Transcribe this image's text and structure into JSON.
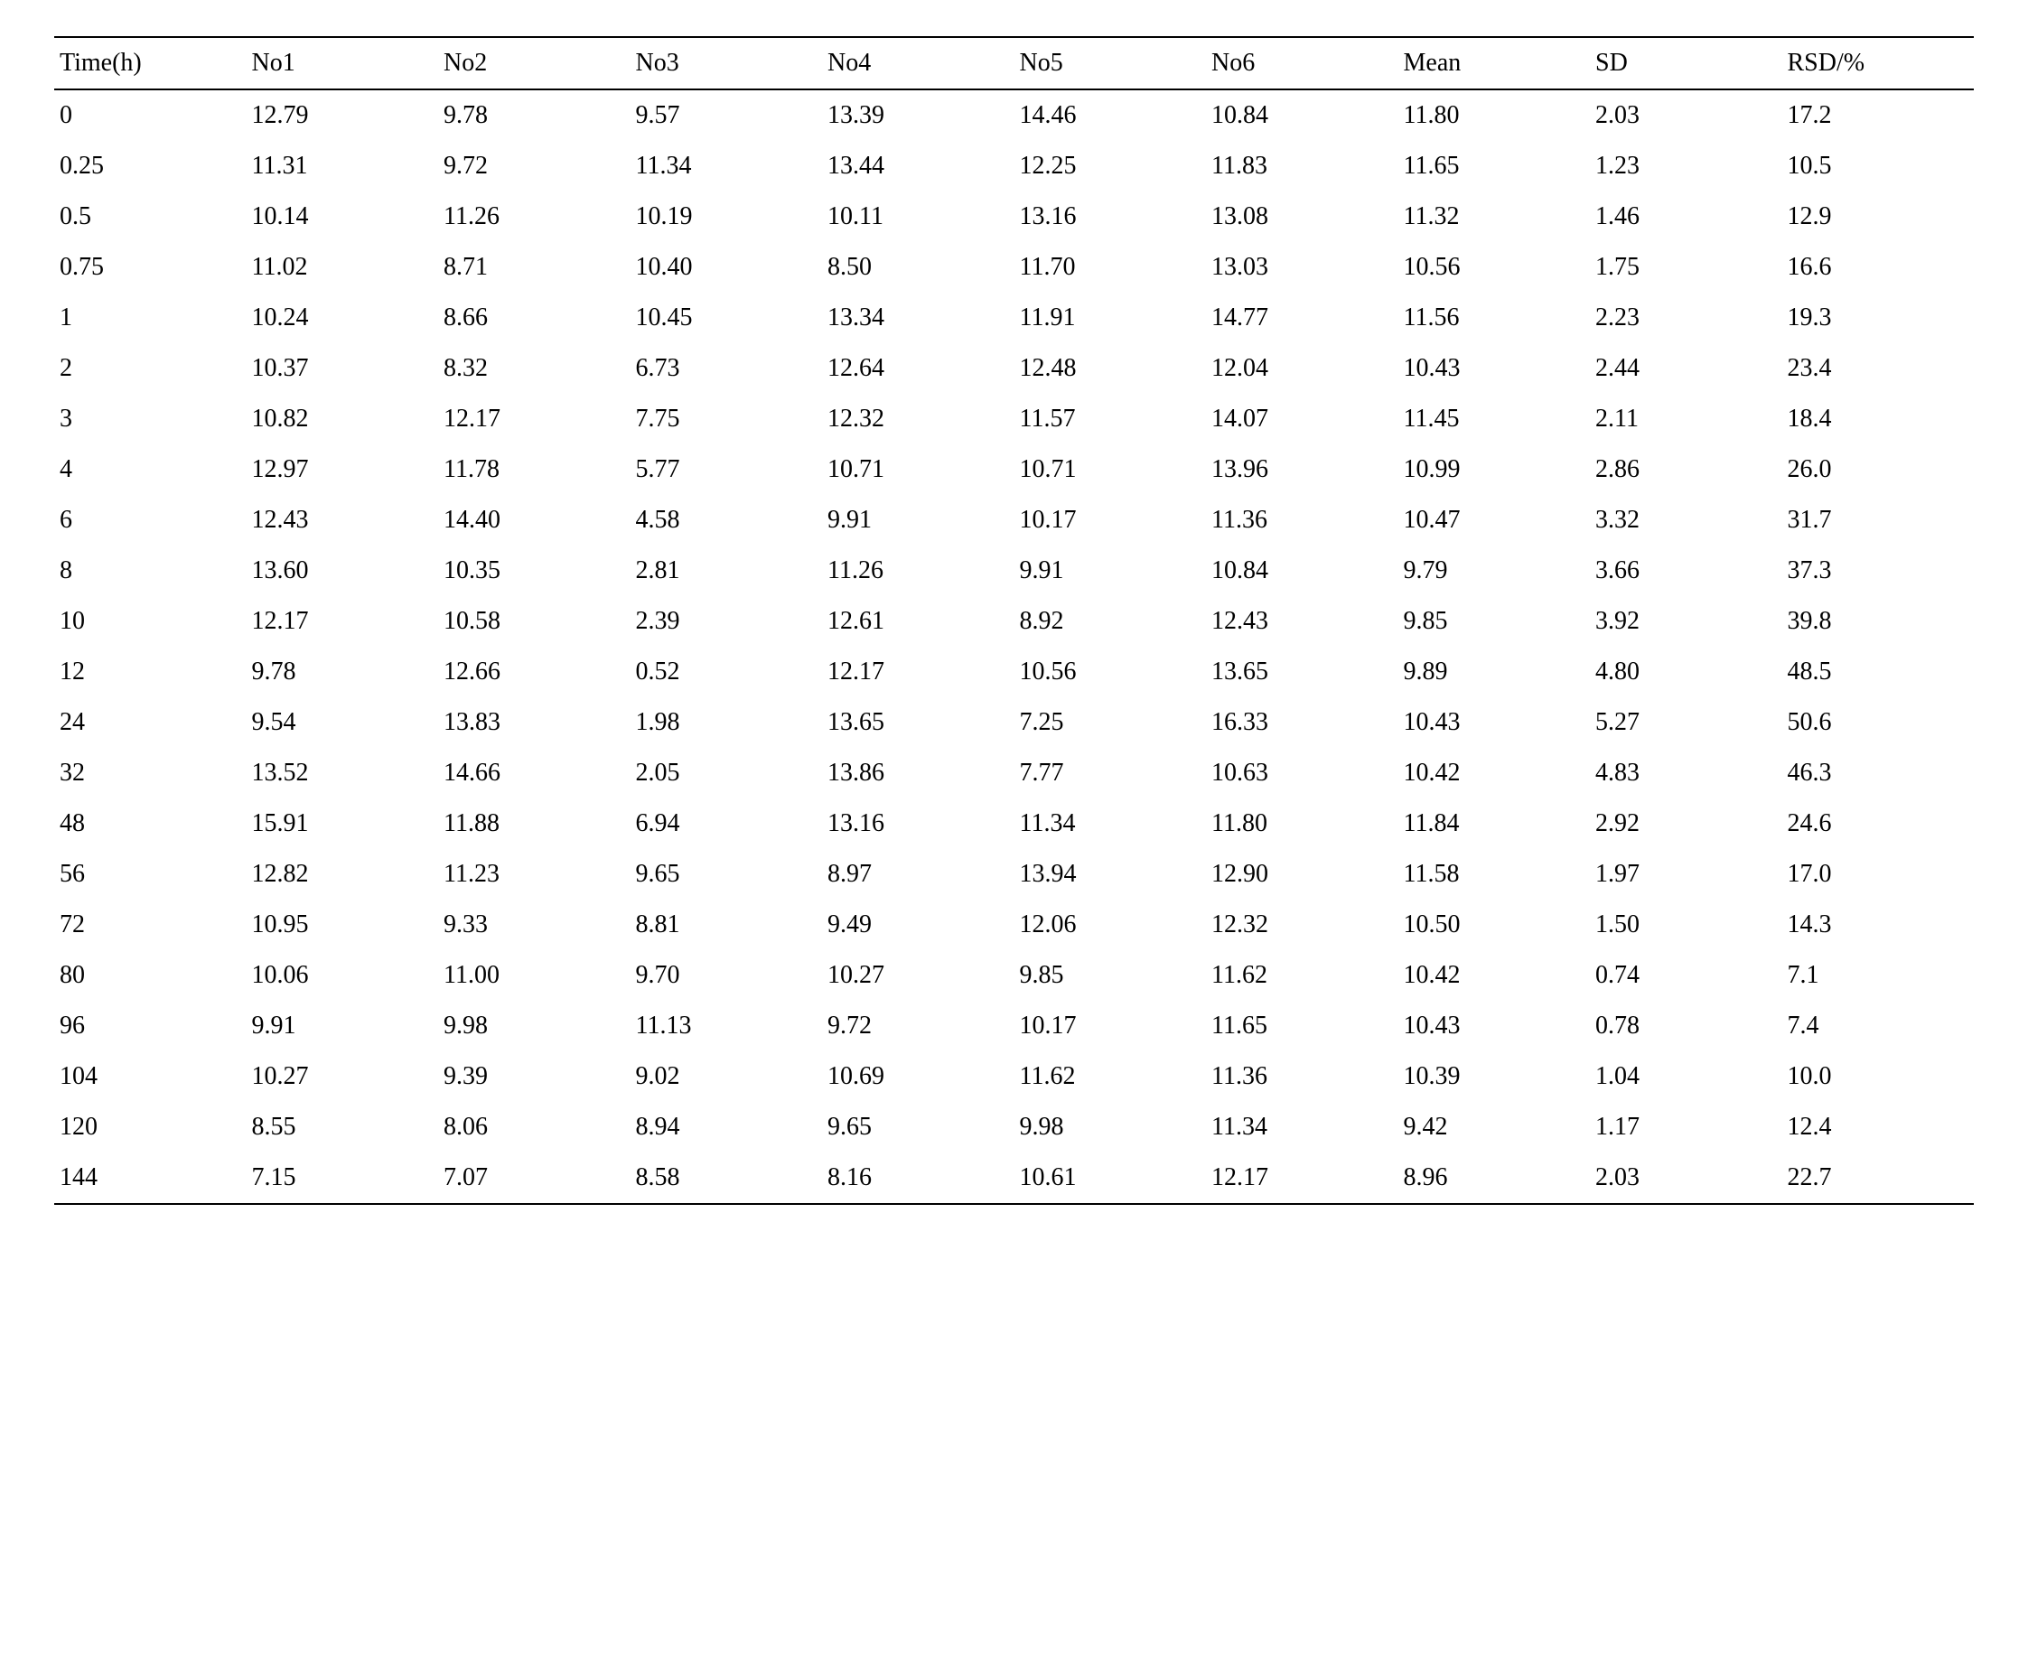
{
  "table": {
    "type": "table",
    "background_color": "#ffffff",
    "text_color": "#000000",
    "border_color": "#000000",
    "font_family": "Times New Roman",
    "font_size_pt": 14,
    "columns": [
      "Time(h)",
      "No1",
      "No2",
      "No3",
      "No4",
      "No5",
      "No6",
      "Mean",
      "SD",
      "RSD/%"
    ],
    "column_alignment": [
      "left",
      "left",
      "left",
      "left",
      "left",
      "left",
      "left",
      "left",
      "left",
      "left"
    ],
    "rows": [
      [
        "0",
        "12.79",
        "9.78",
        "9.57",
        "13.39",
        "14.46",
        "10.84",
        "11.80",
        "2.03",
        "17.2"
      ],
      [
        "0.25",
        "11.31",
        "9.72",
        "11.34",
        "13.44",
        "12.25",
        "11.83",
        "11.65",
        "1.23",
        "10.5"
      ],
      [
        "0.5",
        "10.14",
        "11.26",
        "10.19",
        "10.11",
        "13.16",
        "13.08",
        "11.32",
        "1.46",
        "12.9"
      ],
      [
        "0.75",
        "11.02",
        "8.71",
        "10.40",
        "8.50",
        "11.70",
        "13.03",
        "10.56",
        "1.75",
        "16.6"
      ],
      [
        "1",
        "10.24",
        "8.66",
        "10.45",
        "13.34",
        "11.91",
        "14.77",
        "11.56",
        "2.23",
        "19.3"
      ],
      [
        "2",
        "10.37",
        "8.32",
        "6.73",
        "12.64",
        "12.48",
        "12.04",
        "10.43",
        "2.44",
        "23.4"
      ],
      [
        "3",
        "10.82",
        "12.17",
        "7.75",
        "12.32",
        "11.57",
        "14.07",
        "11.45",
        "2.11",
        "18.4"
      ],
      [
        "4",
        "12.97",
        "11.78",
        "5.77",
        "10.71",
        "10.71",
        "13.96",
        "10.99",
        "2.86",
        "26.0"
      ],
      [
        "6",
        "12.43",
        "14.40",
        "4.58",
        "9.91",
        "10.17",
        "11.36",
        "10.47",
        "3.32",
        "31.7"
      ],
      [
        "8",
        "13.60",
        "10.35",
        "2.81",
        "11.26",
        "9.91",
        "10.84",
        "9.79",
        "3.66",
        "37.3"
      ],
      [
        "10",
        "12.17",
        "10.58",
        "2.39",
        "12.61",
        "8.92",
        "12.43",
        "9.85",
        "3.92",
        "39.8"
      ],
      [
        "12",
        "9.78",
        "12.66",
        "0.52",
        "12.17",
        "10.56",
        "13.65",
        "9.89",
        "4.80",
        "48.5"
      ],
      [
        "24",
        "9.54",
        "13.83",
        "1.98",
        "13.65",
        "7.25",
        "16.33",
        "10.43",
        "5.27",
        "50.6"
      ],
      [
        "32",
        "13.52",
        "14.66",
        "2.05",
        "13.86",
        "7.77",
        "10.63",
        "10.42",
        "4.83",
        "46.3"
      ],
      [
        "48",
        "15.91",
        "11.88",
        "6.94",
        "13.16",
        "11.34",
        "11.80",
        "11.84",
        "2.92",
        "24.6"
      ],
      [
        "56",
        "12.82",
        "11.23",
        "9.65",
        "8.97",
        "13.94",
        "12.90",
        "11.58",
        "1.97",
        "17.0"
      ],
      [
        "72",
        "10.95",
        "9.33",
        "8.81",
        "9.49",
        "12.06",
        "12.32",
        "10.50",
        "1.50",
        "14.3"
      ],
      [
        "80",
        "10.06",
        "11.00",
        "9.70",
        "10.27",
        "9.85",
        "11.62",
        "10.42",
        "0.74",
        "7.1"
      ],
      [
        "96",
        "9.91",
        "9.98",
        "11.13",
        "9.72",
        "10.17",
        "11.65",
        "10.43",
        "0.78",
        "7.4"
      ],
      [
        "104",
        "10.27",
        "9.39",
        "9.02",
        "10.69",
        "11.62",
        "11.36",
        "10.39",
        "1.04",
        "10.0"
      ],
      [
        "120",
        "8.55",
        "8.06",
        "8.94",
        "9.65",
        "9.98",
        "11.34",
        "9.42",
        "1.17",
        "12.4"
      ],
      [
        "144",
        "7.15",
        "7.07",
        "8.58",
        "8.16",
        "10.61",
        "12.17",
        "8.96",
        "2.03",
        "22.7"
      ]
    ]
  }
}
